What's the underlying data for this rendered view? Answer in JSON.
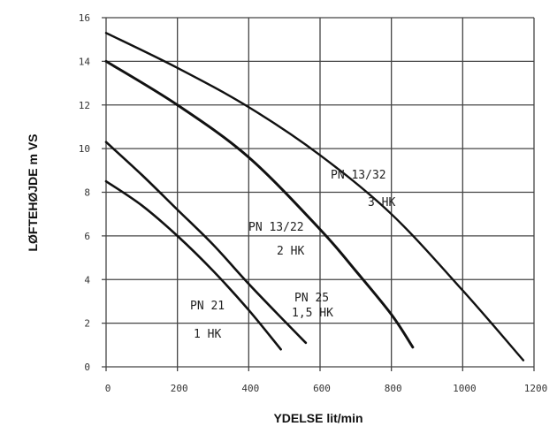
{
  "chart_data": {
    "type": "line",
    "xlabel": "YDELSE lit/min",
    "ylabel": "LØFTEHØJDE m VS",
    "xlim": [
      0,
      1200
    ],
    "ylim": [
      0,
      16
    ],
    "x_ticks": [
      "0",
      "200",
      "400",
      "600",
      "800",
      "1000",
      "1200"
    ],
    "y_ticks": [
      "0",
      "2",
      "4",
      "6",
      "8",
      "10",
      "12",
      "14",
      "16"
    ],
    "grid": true,
    "series": [
      {
        "name": "PN 13/32",
        "power": "3 HK",
        "points": [
          [
            0,
            15.3
          ],
          [
            200,
            13.7
          ],
          [
            400,
            11.9
          ],
          [
            600,
            9.7
          ],
          [
            800,
            7.0
          ],
          [
            1000,
            3.5
          ],
          [
            1170,
            0.3
          ]
        ]
      },
      {
        "name": "PN 13/22",
        "power": "2 HK",
        "points": [
          [
            0,
            14.0
          ],
          [
            200,
            12.0
          ],
          [
            400,
            9.6
          ],
          [
            600,
            6.3
          ],
          [
            700,
            4.4
          ],
          [
            800,
            2.4
          ],
          [
            860,
            0.9
          ]
        ]
      },
      {
        "name": "PN 25",
        "power": "1,5 HK",
        "points": [
          [
            0,
            10.3
          ],
          [
            100,
            8.8
          ],
          [
            200,
            7.2
          ],
          [
            300,
            5.6
          ],
          [
            400,
            3.8
          ],
          [
            500,
            2.1
          ],
          [
            560,
            1.1
          ]
        ]
      },
      {
        "name": "PN 21",
        "power": "1 HK",
        "points": [
          [
            0,
            8.5
          ],
          [
            100,
            7.4
          ],
          [
            200,
            6.0
          ],
          [
            300,
            4.4
          ],
          [
            400,
            2.6
          ],
          [
            490,
            0.8
          ]
        ]
      }
    ]
  }
}
